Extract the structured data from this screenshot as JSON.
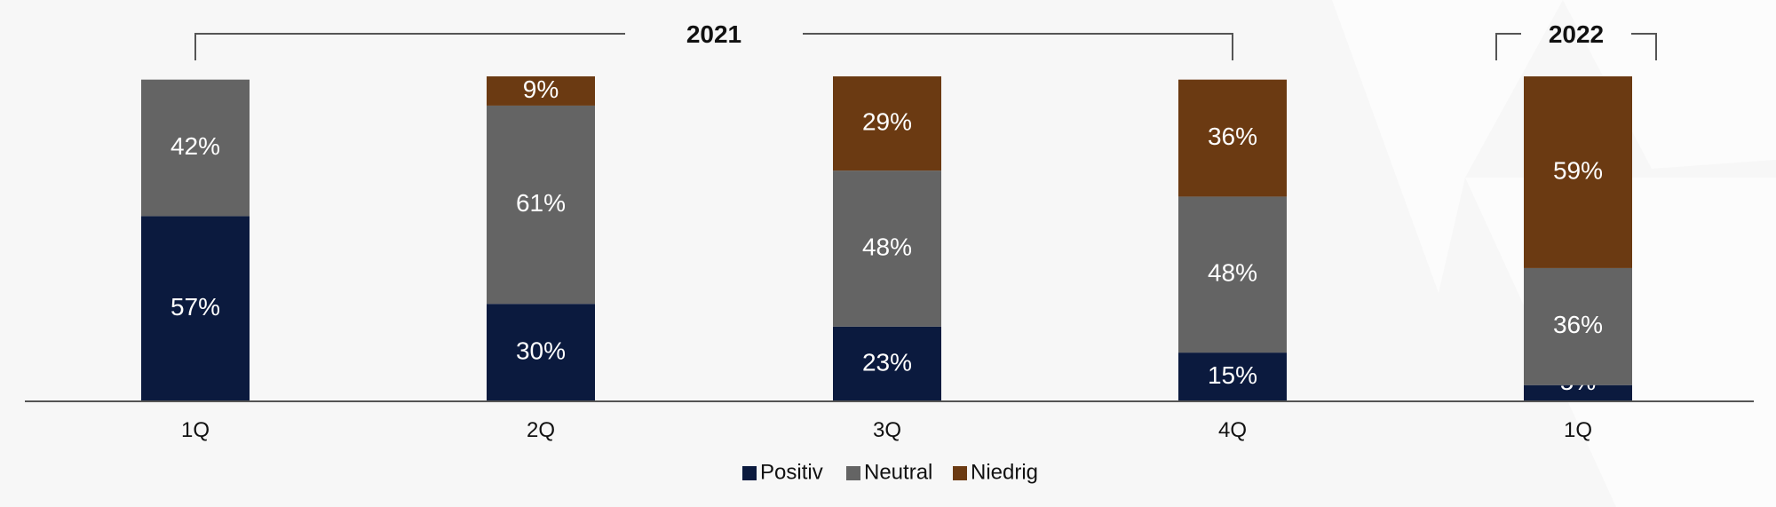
{
  "chart_data": {
    "type": "bar",
    "stacked": true,
    "categories": [
      "1Q",
      "2Q",
      "3Q",
      "4Q",
      "1Q"
    ],
    "groups": [
      {
        "label": "2021",
        "categories": [
          0,
          1,
          2,
          3
        ]
      },
      {
        "label": "2022",
        "categories": [
          4
        ]
      }
    ],
    "series": [
      {
        "name": "Positiv",
        "color": "#0b1a3e",
        "values": [
          57,
          30,
          23,
          15,
          5
        ]
      },
      {
        "name": "Neutral",
        "color": "#646464",
        "values": [
          42,
          61,
          48,
          48,
          36
        ]
      },
      {
        "name": "Niedrig",
        "color": "#6b3a12",
        "values": [
          0,
          9,
          29,
          36,
          59
        ]
      }
    ],
    "data_labels": [
      [
        "57%",
        "30%",
        "23%",
        "15%",
        "5%"
      ],
      [
        "42%",
        "61%",
        "48%",
        "48%",
        "36%"
      ],
      [
        "",
        "9%",
        "29%",
        "36%",
        "59%"
      ]
    ],
    "ylim": [
      0,
      100
    ],
    "legend": {
      "position": "bottom"
    },
    "grid": false
  }
}
